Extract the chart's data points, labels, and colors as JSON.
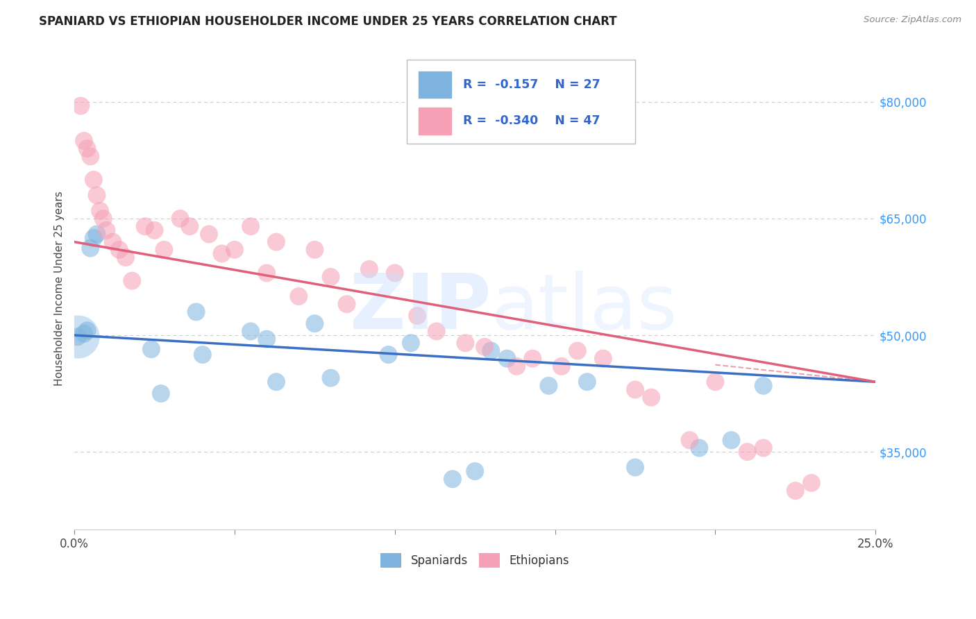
{
  "title": "SPANIARD VS ETHIOPIAN HOUSEHOLDER INCOME UNDER 25 YEARS CORRELATION CHART",
  "source": "Source: ZipAtlas.com",
  "ylabel": "Householder Income Under 25 years",
  "xlim": [
    0.0,
    0.25
  ],
  "ylim": [
    25000,
    87000
  ],
  "yticks": [
    35000,
    50000,
    65000,
    80000
  ],
  "ytick_labels": [
    "$35,000",
    "$50,000",
    "$65,000",
    "$80,000"
  ],
  "spaniard_color": "#7EB3E0",
  "ethiopian_color": "#F5A0B5",
  "spaniard_line_color": "#3B6FC4",
  "ethiopian_line_color": "#E0607A",
  "background_color": "#FFFFFF",
  "grid_color": "#CCCCCC",
  "spaniard_R": -0.157,
  "spaniard_N": 27,
  "ethiopian_R": -0.34,
  "ethiopian_N": 47,
  "legend_text_color": "#3366CC",
  "sp_x": [
    0.001,
    0.003,
    0.004,
    0.005,
    0.006,
    0.007,
    0.024,
    0.027,
    0.038,
    0.04,
    0.055,
    0.06,
    0.063,
    0.075,
    0.08,
    0.098,
    0.105,
    0.118,
    0.125,
    0.135,
    0.148,
    0.16,
    0.175,
    0.195,
    0.205,
    0.215,
    0.13
  ],
  "sp_y": [
    49800,
    50200,
    50600,
    61200,
    62500,
    63000,
    48200,
    42500,
    53000,
    47500,
    50500,
    49500,
    44000,
    51500,
    44500,
    47500,
    49000,
    31500,
    32500,
    47000,
    43500,
    44000,
    33000,
    35500,
    36500,
    43500,
    48000
  ],
  "eth_x": [
    0.002,
    0.003,
    0.004,
    0.005,
    0.006,
    0.007,
    0.008,
    0.009,
    0.01,
    0.012,
    0.014,
    0.016,
    0.018,
    0.022,
    0.025,
    0.028,
    0.033,
    0.036,
    0.042,
    0.046,
    0.05,
    0.055,
    0.06,
    0.063,
    0.07,
    0.075,
    0.08,
    0.085,
    0.092,
    0.1,
    0.107,
    0.113,
    0.122,
    0.128,
    0.138,
    0.143,
    0.152,
    0.157,
    0.165,
    0.175,
    0.18,
    0.192,
    0.2,
    0.21,
    0.215,
    0.225,
    0.23
  ],
  "eth_y": [
    79500,
    75000,
    74000,
    73000,
    70000,
    68000,
    66000,
    65000,
    63500,
    62000,
    61000,
    60000,
    57000,
    64000,
    63500,
    61000,
    65000,
    64000,
    63000,
    60500,
    61000,
    64000,
    58000,
    62000,
    55000,
    61000,
    57500,
    54000,
    58500,
    58000,
    52500,
    50500,
    49000,
    48500,
    46000,
    47000,
    46000,
    48000,
    47000,
    43000,
    42000,
    36500,
    44000,
    35000,
    35500,
    30000,
    31000
  ]
}
